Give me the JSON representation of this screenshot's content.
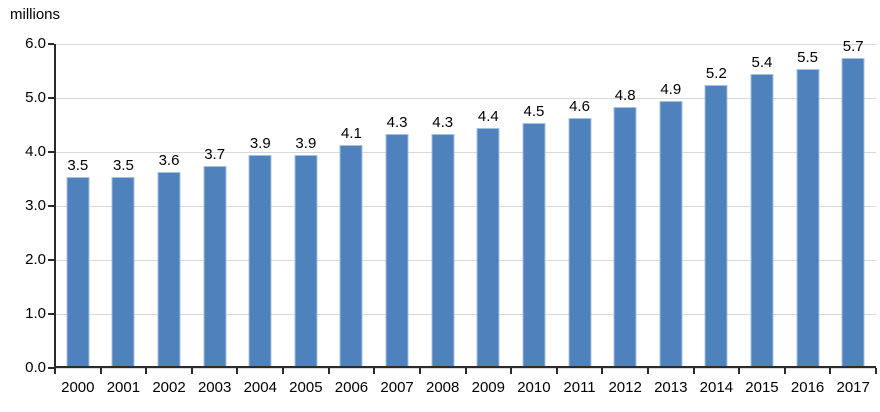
{
  "chart_data": {
    "type": "bar",
    "title": "",
    "ylabel": "millions",
    "xlabel": "",
    "categories": [
      "2000",
      "2001",
      "2002",
      "2003",
      "2004",
      "2005",
      "2006",
      "2007",
      "2008",
      "2009",
      "2010",
      "2011",
      "2012",
      "2013",
      "2014",
      "2015",
      "2016",
      "2017"
    ],
    "values": [
      3.5,
      3.5,
      3.6,
      3.7,
      3.9,
      3.9,
      4.1,
      4.3,
      4.3,
      4.4,
      4.5,
      4.6,
      4.8,
      4.9,
      5.2,
      5.4,
      5.5,
      5.7
    ],
    "data_labels_shown": true,
    "ylim": [
      0,
      6
    ],
    "ytick_labels": [
      "0.0",
      "1.0",
      "2.0",
      "3.0",
      "4.0",
      "5.0",
      "6.0"
    ],
    "grid": "horizontal",
    "legend_position": "none",
    "colors": {
      "bar_fill": "#4f81bd",
      "bar_edge": "#a7c0dd",
      "gridline": "#d9d9d9",
      "axis_line": "#2b2b2b",
      "text": "#000000"
    }
  }
}
